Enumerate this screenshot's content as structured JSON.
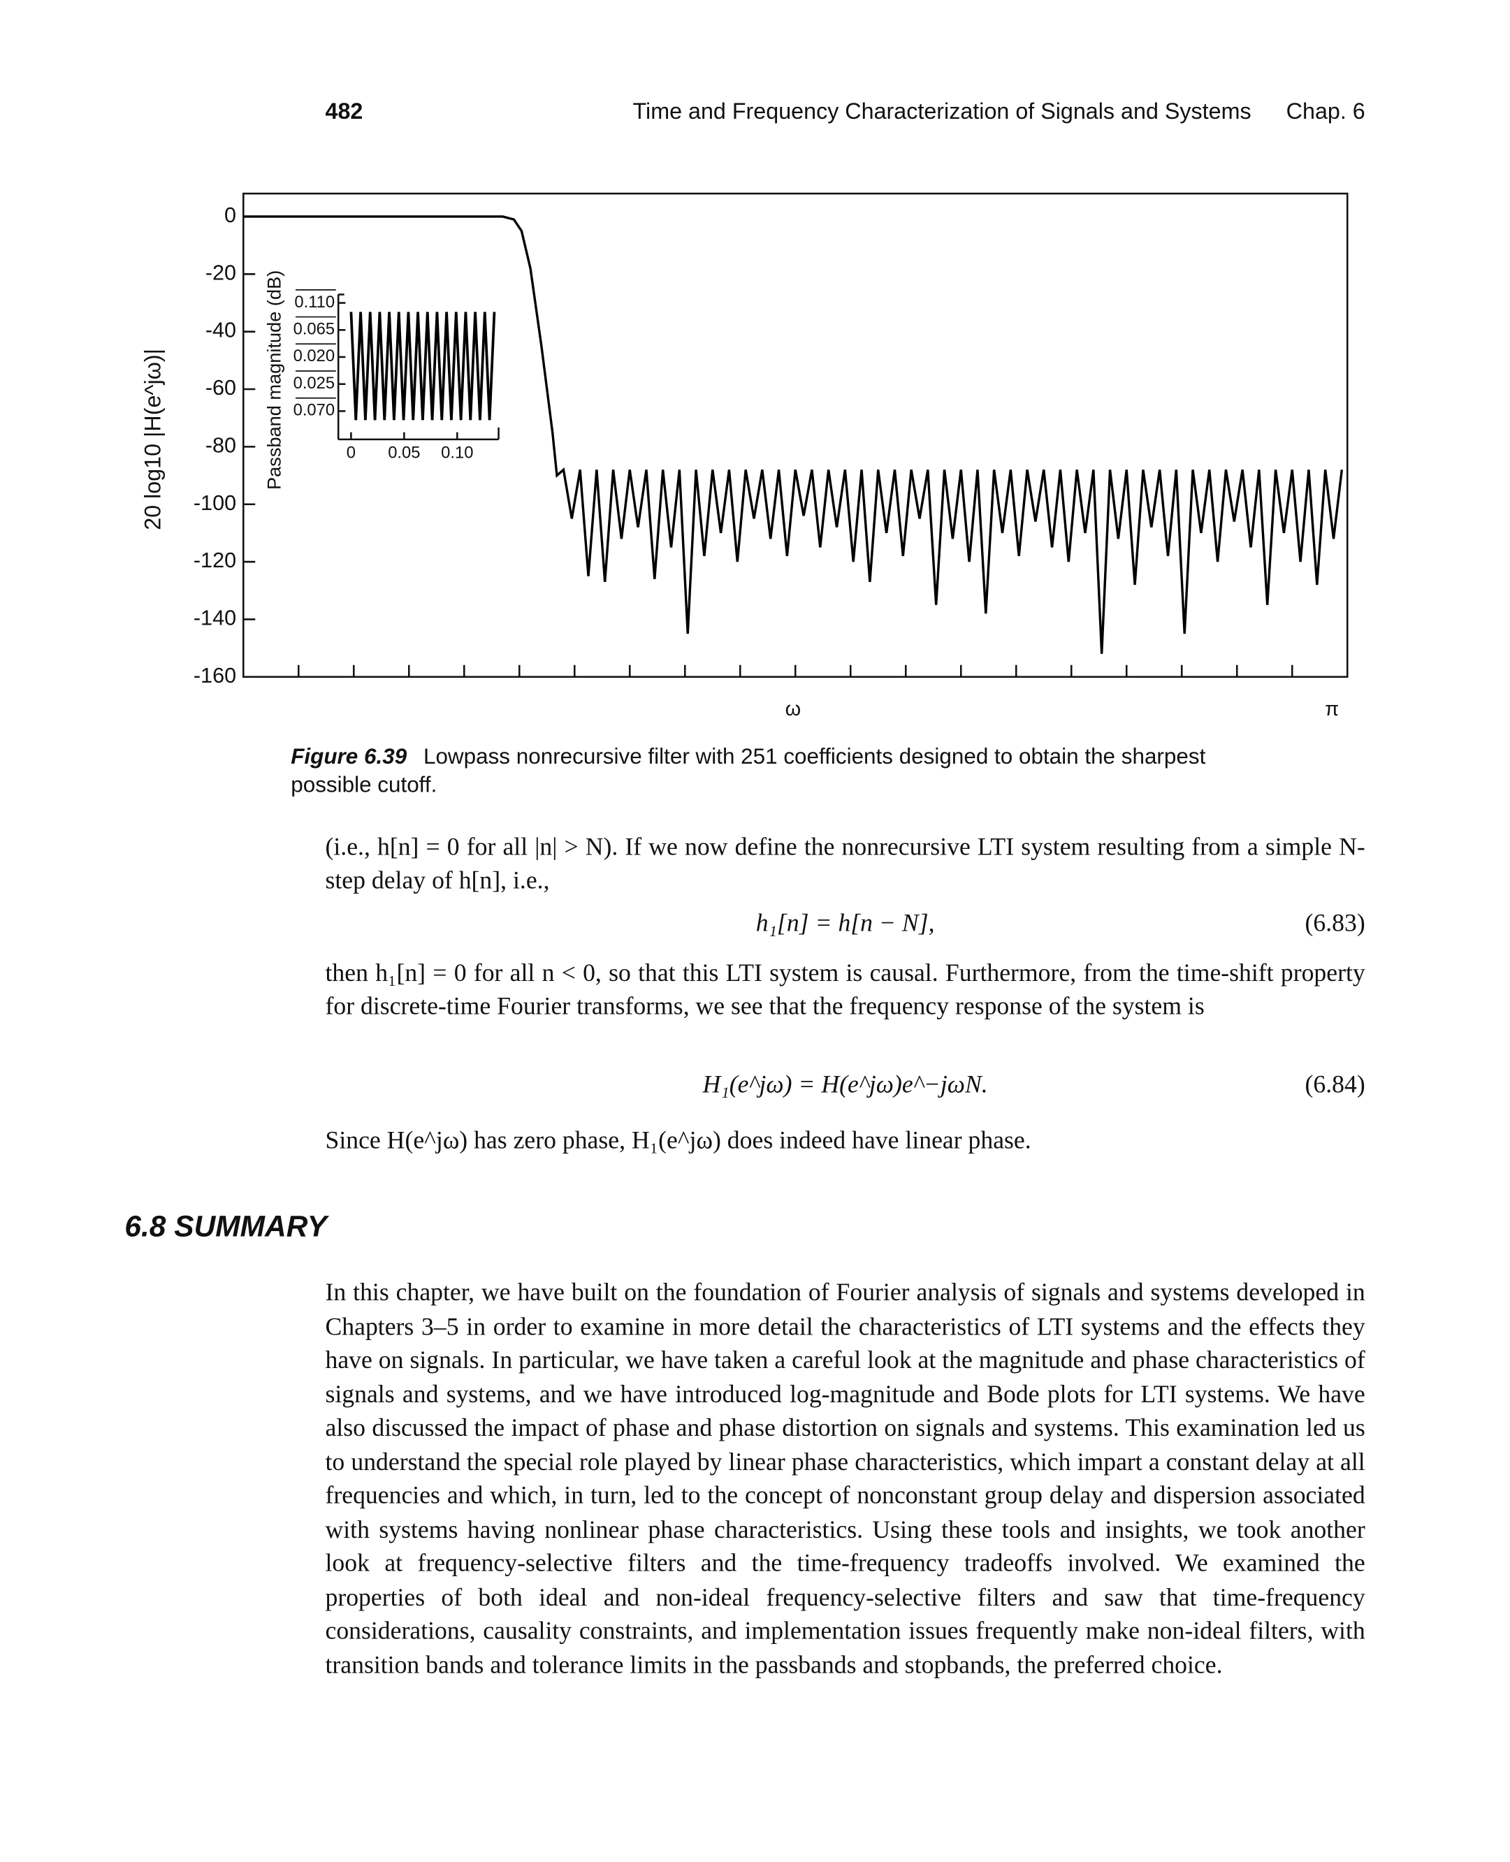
{
  "header": {
    "page": "482",
    "title": "Time and Frequency Characterization of Signals and Systems",
    "chapter": "Chap. 6"
  },
  "chart_data": [
    {
      "type": "line",
      "ylabel": "20 log10 |H(e^jω)|",
      "xlabel": "ω",
      "xend_label": "π",
      "xlim": [
        0,
        1
      ],
      "ylim": [
        -160,
        8
      ],
      "xticks": [
        0.05,
        0.1,
        0.15,
        0.2,
        0.25,
        0.3,
        0.35,
        0.4,
        0.45,
        0.5,
        0.55,
        0.6,
        0.65,
        0.7,
        0.75,
        0.8,
        0.85,
        0.9,
        0.95
      ],
      "yticks": [
        0,
        -20,
        -40,
        -60,
        -80,
        -100,
        -120,
        -140,
        -160
      ],
      "x": [
        0,
        0.235,
        0.245,
        0.252,
        0.26,
        0.27,
        0.28,
        0.284,
        0.29,
        0.2975,
        0.305,
        0.3125,
        0.32,
        0.3275,
        0.335,
        0.3425,
        0.35,
        0.3575,
        0.365,
        0.3725,
        0.38,
        0.3875,
        0.395,
        0.4025,
        0.41,
        0.4175,
        0.425,
        0.4325,
        0.44,
        0.4475,
        0.455,
        0.4625,
        0.47,
        0.4775,
        0.485,
        0.4925,
        0.5,
        0.5075,
        0.515,
        0.5225,
        0.53,
        0.5375,
        0.545,
        0.5525,
        0.56,
        0.5675,
        0.575,
        0.5825,
        0.59,
        0.5975,
        0.605,
        0.6125,
        0.62,
        0.6275,
        0.635,
        0.6425,
        0.65,
        0.6575,
        0.665,
        0.6725,
        0.68,
        0.6875,
        0.695,
        0.7025,
        0.71,
        0.7175,
        0.725,
        0.7325,
        0.74,
        0.7475,
        0.755,
        0.7625,
        0.77,
        0.7775,
        0.785,
        0.7925,
        0.8,
        0.8075,
        0.815,
        0.8225,
        0.83,
        0.8375,
        0.845,
        0.8525,
        0.86,
        0.8675,
        0.875,
        0.8825,
        0.89,
        0.8975,
        0.905,
        0.9125,
        0.92,
        0.9275,
        0.935,
        0.9425,
        0.95,
        0.9575,
        0.965,
        0.9725,
        0.98,
        0.9875,
        0.995
      ],
      "series": [
        {
          "color": "#000000",
          "values": [
            0,
            0,
            -1,
            -5,
            -18,
            -45,
            -75,
            -90,
            -88,
            -105,
            -88,
            -125,
            -88,
            -127,
            -88,
            -112,
            -88,
            -108,
            -88,
            -126,
            -88,
            -115,
            -88,
            -145,
            -88,
            -118,
            -88,
            -110,
            -88,
            -120,
            -88,
            -105,
            -88,
            -112,
            -88,
            -118,
            -88,
            -104,
            -88,
            -115,
            -88,
            -108,
            -88,
            -120,
            -88,
            -127,
            -88,
            -110,
            -88,
            -118,
            -88,
            -105,
            -88,
            -135,
            -88,
            -112,
            -88,
            -120,
            -88,
            -138,
            -88,
            -110,
            -88,
            -118,
            -88,
            -106,
            -88,
            -115,
            -88,
            -120,
            -88,
            -110,
            -88,
            -152,
            -88,
            -112,
            -88,
            -128,
            -88,
            -108,
            -88,
            -118,
            -88,
            -145,
            -88,
            -110,
            -88,
            -120,
            -88,
            -106,
            -88,
            -115,
            -88,
            -135,
            -88,
            -110,
            -88,
            -120,
            -88,
            -128,
            -88,
            -112,
            -88
          ]
        }
      ]
    },
    {
      "type": "line",
      "ylabel": "Passband magnitude (dB)",
      "xlim": [
        -0.012,
        0.139
      ],
      "ylim": [
        -0.117,
        0.124
      ],
      "xticks": [
        0,
        0.05,
        {
          "value": 0.1,
          "label": "0.10"
        }
      ],
      "yticks": [
        {
          "value": 0.11,
          "label": "0.110"
        },
        0.065,
        {
          "value": 0.02,
          "label": "0.020"
        },
        {
          "value": -0.025,
          "label": "0.025"
        },
        {
          "value": -0.07,
          "label": "0.070"
        }
      ],
      "x": [
        0,
        0.0045,
        0.009,
        0.0135,
        0.018,
        0.0225,
        0.027,
        0.0315,
        0.036,
        0.0405,
        0.045,
        0.0495,
        0.054,
        0.0585,
        0.063,
        0.0675,
        0.072,
        0.0765,
        0.081,
        0.0855,
        0.09,
        0.0945,
        0.099,
        0.1035,
        0.108,
        0.1125,
        0.117,
        0.1215,
        0.126,
        0.1305,
        0.135
      ],
      "series": [
        {
          "color": "#000000",
          "values": [
            0.095,
            -0.085,
            0.095,
            -0.085,
            0.095,
            -0.085,
            0.095,
            -0.085,
            0.095,
            -0.085,
            0.095,
            -0.085,
            0.095,
            -0.085,
            0.095,
            -0.085,
            0.095,
            -0.085,
            0.095,
            -0.085,
            0.095,
            -0.085,
            0.095,
            -0.085,
            0.095,
            -0.085,
            0.095,
            -0.085,
            0.095,
            -0.085,
            0.095
          ]
        }
      ]
    }
  ],
  "caption": {
    "label": "Figure 6.39",
    "text": "Lowpass nonrecursive filter with 251 coefficients designed to obtain the sharpest possible cutoff."
  },
  "body": {
    "p1": "(i.e., h[n] = 0 for all |n| > N). If we now define the nonrecursive LTI system resulting from a simple N-step delay of h[n], i.e.,",
    "eq1": {
      "expr": "h₁[n] = h[n − N],",
      "number": "(6.83)"
    },
    "p2": "then h₁[n] = 0 for all n < 0, so that this LTI system is causal. Furthermore, from the time-shift property for discrete-time Fourier transforms, we see that the frequency response of the system is",
    "eq2": {
      "expr": "H₁(e^jω) = H(e^jω)e^−jωN.",
      "number": "(6.84)"
    },
    "p3": "Since H(e^jω) has zero phase, H₁(e^jω) does indeed have linear phase."
  },
  "section": {
    "number": "6.8",
    "title": "SUMMARY"
  },
  "summary": "In this chapter, we have built on the foundation of Fourier analysis of signals and systems developed in Chapters 3–5 in order to examine in more detail the characteristics of LTI systems and the effects they have on signals. In particular, we have taken a careful look at the magnitude and phase characteristics of signals and systems, and we have introduced log-magnitude and Bode plots for LTI systems. We have also discussed the impact of phase and phase distortion on signals and systems. This examination led us to understand the special role played by linear phase characteristics, which impart a constant delay at all frequencies and which, in turn, led to the concept of nonconstant group delay and dispersion associated with systems having nonlinear phase characteristics. Using these tools and insights, we took another look at frequency-selective filters and the time-frequency tradeoffs involved. We examined the properties of both ideal and non-ideal frequency-selective filters and saw that time-frequency considerations, causality constraints, and implementation issues frequently make non-ideal filters, with transition bands and tolerance limits in the passbands and stopbands, the preferred choice."
}
